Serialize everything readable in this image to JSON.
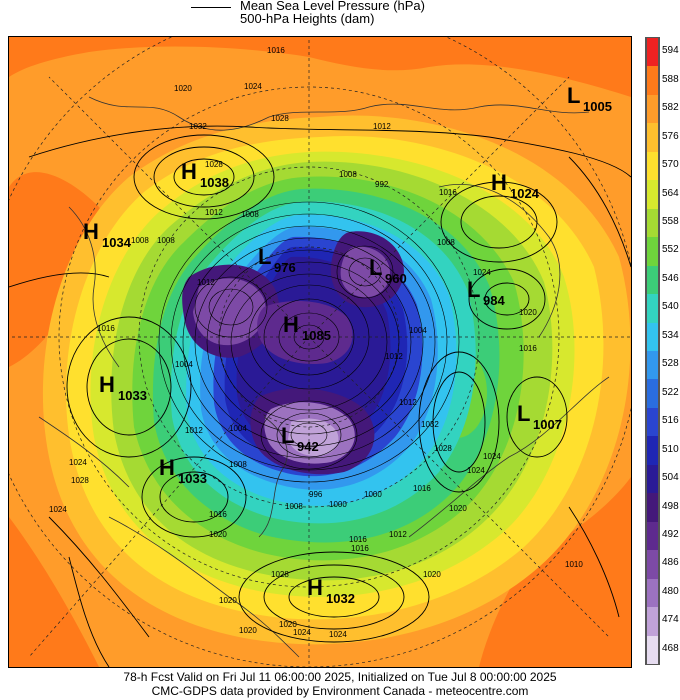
{
  "header": {
    "line1": "Mean Sea Level Pressure (hPa)",
    "line2": "500-hPa Heights (dam)"
  },
  "footer": {
    "line1": "78-h Fcst Valid on Fri Jul 11 06:00:00 2025, Initialized on Tue Jul  8 00:00:00 2025",
    "line2": "CMC-GDPS data provided by Environment Canada - meteocentre.com"
  },
  "colorbar": {
    "levels": [
      "594",
      "588",
      "582",
      "576",
      "570",
      "564",
      "558",
      "552",
      "546",
      "540",
      "534",
      "528",
      "522",
      "516",
      "510",
      "504",
      "498",
      "492",
      "486",
      "480",
      "474",
      "468"
    ],
    "colors": [
      "#ee2222",
      "#ff7a1a",
      "#ff9c2a",
      "#ffbf2e",
      "#ffe02e",
      "#d7e82e",
      "#a5da33",
      "#6fd43c",
      "#3ccd78",
      "#33d3c0",
      "#33c3ef",
      "#3298ee",
      "#2a6de0",
      "#2a45d0",
      "#1f26b4",
      "#2a1a96",
      "#44187a",
      "#5e2a8e",
      "#7d4aa6",
      "#9c72c0",
      "#c0a2d8",
      "#e6dcf0"
    ]
  },
  "map": {
    "systems": [
      {
        "type": "H",
        "value": "1038"
      },
      {
        "type": "H",
        "value": "1034"
      },
      {
        "type": "H",
        "value": "1033"
      },
      {
        "type": "H",
        "value": "1033"
      },
      {
        "type": "H",
        "value": "1032"
      },
      {
        "type": "H",
        "value": "1024"
      },
      {
        "type": "H",
        "value": "1085"
      },
      {
        "type": "L",
        "value": "1005"
      },
      {
        "type": "L",
        "value": "984"
      },
      {
        "type": "L",
        "value": "1007"
      },
      {
        "type": "L",
        "value": "942"
      },
      {
        "type": "L",
        "value": "960"
      },
      {
        "type": "L",
        "value": "976"
      }
    ],
    "isobar_labels": [
      "1016",
      "1020",
      "1024",
      "1032",
      "1028",
      "1008",
      "1012",
      "1016",
      "1024",
      "1008",
      "1004",
      "1012",
      "1020",
      "1020",
      "1016",
      "1024",
      "1028",
      "1008",
      "992",
      "1008",
      "1016",
      "1020",
      "1004",
      "1012",
      "1016",
      "1000",
      "1008",
      "1012",
      "1024",
      "1020",
      "1012",
      "1008",
      "1016",
      "1024",
      "1024",
      "1020",
      "1028",
      "1020",
      "1024",
      "1024",
      "1032",
      "1028",
      "1010",
      "1012",
      "1016",
      "1004",
      "996",
      "1000",
      "1008",
      "1012",
      "1028",
      "1020",
      "1016"
    ]
  }
}
